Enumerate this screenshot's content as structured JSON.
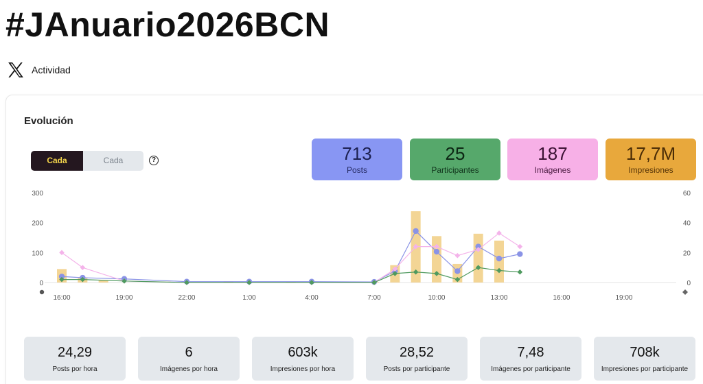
{
  "title": "#JAnuario2026BCN",
  "activity": {
    "icon": "x-logo-icon",
    "label": "Actividad"
  },
  "section_title": "Evolución",
  "toggle": {
    "active_label": "Cada hora",
    "inactive_label": "Cada minuto",
    "help_glyph": "?"
  },
  "stats": [
    {
      "value": "713",
      "label": "Posts",
      "color": "#8896f3"
    },
    {
      "value": "25",
      "label": "Participantes",
      "color": "#56a86b"
    },
    {
      "value": "187",
      "label": "Imágenes",
      "color": "#f7b0e7"
    },
    {
      "value": "17,7M",
      "label": "Impresiones",
      "color": "#e8a83c"
    }
  ],
  "metrics": [
    {
      "value": "24,29",
      "label": "Posts por hora"
    },
    {
      "value": "6",
      "label": "Imágenes por hora"
    },
    {
      "value": "603k",
      "label": "Impresiones por hora"
    },
    {
      "value": "28,52",
      "label": "Posts por participante"
    },
    {
      "value": "7,48",
      "label": "Imágenes por participante"
    },
    {
      "value": "708k",
      "label": "Impresiones por participante"
    }
  ],
  "chart_data": {
    "type": "bar",
    "x_tick_labels": [
      "16:00",
      "19:00",
      "22:00",
      "1:00",
      "4:00",
      "7:00",
      "10:00",
      "13:00",
      "16:00",
      "19:00"
    ],
    "y_left": {
      "ticks": [
        "0",
        "100",
        "200",
        "300"
      ],
      "ylim": [
        0,
        300
      ]
    },
    "y_right": {
      "ticks": [
        "0",
        "20",
        "40",
        "60"
      ],
      "ylim": [
        0,
        60
      ]
    },
    "grid": false,
    "series": [
      {
        "axis": "left",
        "kind": "bar",
        "color": "#f3d595",
        "x": [
          "16:00",
          "17:00",
          "18:00",
          "21:00",
          "00:00",
          "03:00",
          "06:00",
          "07:00",
          "08:00",
          "09:00",
          "10:00",
          "11:00",
          "12:00",
          "13:00"
        ],
        "values": [
          45,
          15,
          8,
          3,
          4,
          3,
          2,
          2,
          58,
          238,
          155,
          62,
          163,
          140
        ]
      },
      {
        "axis": "left",
        "kind": "line",
        "marker": "circle",
        "color": "#8a93e6",
        "x": [
          "16:00",
          "17:00",
          "19:00",
          "22:00",
          "01:00",
          "04:00",
          "07:00",
          "08:00",
          "09:00",
          "10:00",
          "11:00",
          "12:00",
          "13:00",
          "14:00"
        ],
        "values": [
          20,
          16,
          12,
          3,
          3,
          3,
          2,
          38,
          172,
          103,
          38,
          120,
          80,
          95
        ]
      },
      {
        "axis": "right",
        "kind": "line",
        "marker": "diamond",
        "color": "#f4b3ea",
        "x": [
          "16:00",
          "17:00",
          "19:00",
          "22:00",
          "01:00",
          "04:00",
          "07:00",
          "08:00",
          "09:00",
          "10:00",
          "11:00",
          "12:00",
          "13:00",
          "14:00"
        ],
        "values": [
          20,
          10,
          1,
          0,
          0,
          0,
          0,
          9,
          24,
          24,
          18,
          22,
          33,
          24
        ]
      },
      {
        "axis": "right",
        "kind": "line",
        "marker": "diamond",
        "color": "#4f9a5f",
        "x": [
          "16:00",
          "17:00",
          "19:00",
          "22:00",
          "01:00",
          "04:00",
          "07:00",
          "08:00",
          "09:00",
          "10:00",
          "11:00",
          "12:00",
          "13:00",
          "14:00"
        ],
        "values": [
          2,
          2,
          1,
          0,
          0,
          0,
          0,
          6,
          7,
          6,
          2,
          10,
          8,
          7
        ]
      }
    ]
  }
}
